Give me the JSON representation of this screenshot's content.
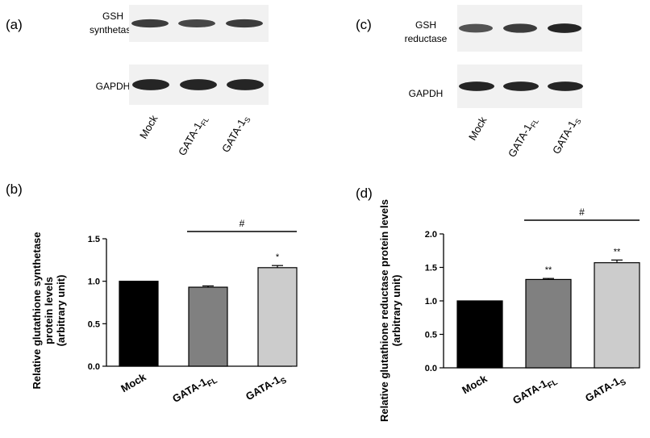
{
  "panels": {
    "a": {
      "label": "(a)",
      "blots": [
        {
          "name_line1": "GSH",
          "name_line2": "synthetase",
          "bands": [
            0.85,
            0.8,
            0.85
          ]
        },
        {
          "name_line1": "GAPDH",
          "name_line2": "",
          "bands": [
            0.95,
            0.95,
            0.95
          ]
        }
      ],
      "lanes": [
        {
          "main": "Mock",
          "sub": ""
        },
        {
          "main": "GATA-1",
          "sub": "FL"
        },
        {
          "main": "GATA-1",
          "sub": "S"
        }
      ]
    },
    "c": {
      "label": "(c)",
      "blots": [
        {
          "name_line1": "GSH",
          "name_line2": "reductase",
          "bands": [
            0.75,
            0.85,
            0.95
          ]
        },
        {
          "name_line1": "GAPDH",
          "name_line2": "",
          "bands": [
            0.95,
            0.95,
            0.95
          ]
        }
      ],
      "lanes": [
        {
          "main": "Mock",
          "sub": ""
        },
        {
          "main": "GATA-1",
          "sub": "FL"
        },
        {
          "main": "GATA-1",
          "sub": "S"
        }
      ]
    },
    "b": {
      "label": "(b)"
    },
    "d": {
      "label": "(d)"
    }
  },
  "chart_data": [
    {
      "type": "bar",
      "panel": "b",
      "categories": [
        {
          "main": "Mock",
          "sub": ""
        },
        {
          "main": "GATA-1",
          "sub": "FL"
        },
        {
          "main": "GATA-1",
          "sub": "S"
        }
      ],
      "values": [
        1.0,
        0.93,
        1.16
      ],
      "errors": [
        0,
        0.015,
        0.025
      ],
      "colors": [
        "#000000",
        "#808080",
        "#cccccc"
      ],
      "significance": [
        "",
        "",
        "*"
      ],
      "bracket": {
        "label": "#",
        "from": 1,
        "to": 2
      },
      "ylabel_lines": [
        "Relative glutathione synthetase",
        "protein levels",
        "(arbitrary unit)"
      ],
      "ylim": [
        0,
        1.5
      ],
      "yticks": [
        "0.0",
        "0.5",
        "1.0",
        "1.5"
      ]
    },
    {
      "type": "bar",
      "panel": "d",
      "categories": [
        {
          "main": "Mock",
          "sub": ""
        },
        {
          "main": "GATA-1",
          "sub": "FL"
        },
        {
          "main": "GATA-1",
          "sub": "S"
        }
      ],
      "values": [
        1.0,
        1.32,
        1.57
      ],
      "errors": [
        0,
        0.015,
        0.04
      ],
      "colors": [
        "#000000",
        "#808080",
        "#cccccc"
      ],
      "significance": [
        "",
        "**",
        "**"
      ],
      "bracket": {
        "label": "#",
        "from": 1,
        "to": 2
      },
      "ylabel_lines": [
        "Relative glutathione reductase protein levels",
        "(arbitrary unit)"
      ],
      "ylim": [
        0,
        2.0
      ],
      "yticks": [
        "0.0",
        "0.5",
        "1.0",
        "1.5",
        "2.0"
      ]
    }
  ]
}
